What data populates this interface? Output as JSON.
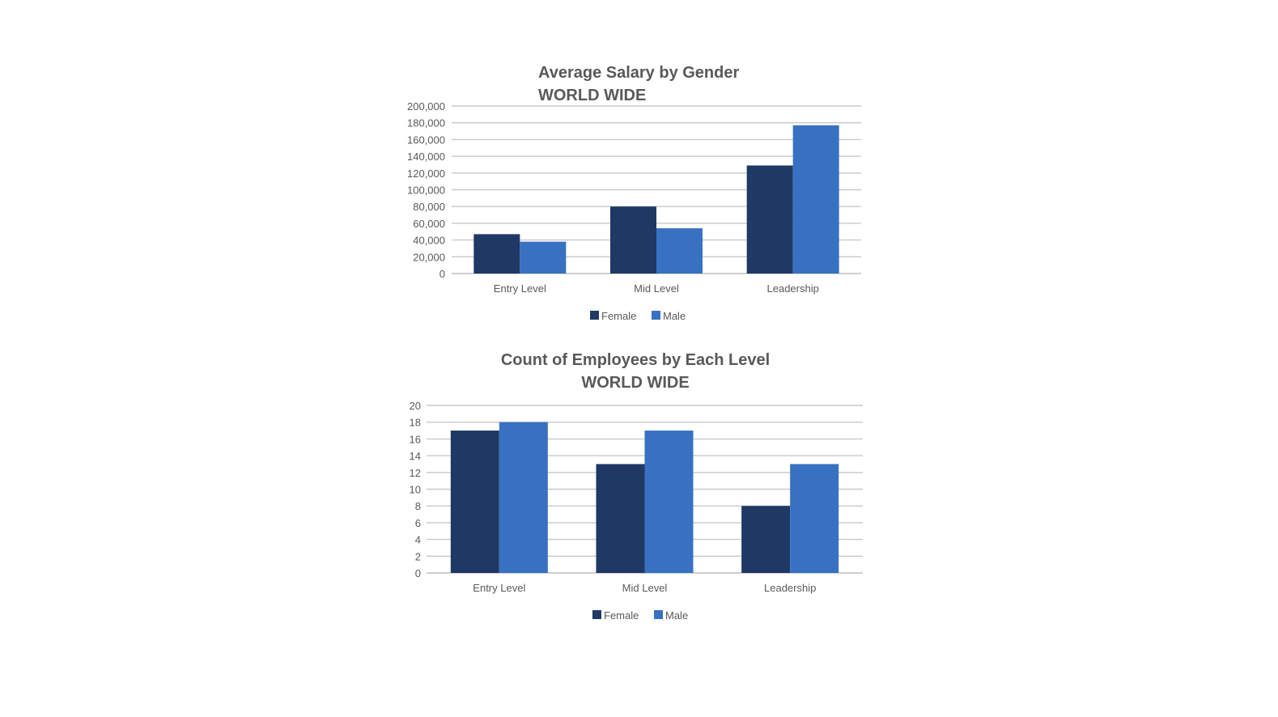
{
  "chart_data": [
    {
      "type": "bar",
      "title": "Average Salary by Gender",
      "subtitle": "WORLD WIDE",
      "categories": [
        "Entry Level",
        "Mid Level",
        "Leadership"
      ],
      "series": [
        {
          "name": "Female",
          "values": [
            47000,
            80000,
            129000
          ],
          "color": "#203864"
        },
        {
          "name": "Male",
          "values": [
            38000,
            54000,
            177000
          ],
          "color": "#3871c1"
        }
      ],
      "ylim": [
        0,
        200000
      ],
      "yticks": [
        "0",
        "20,000",
        "40,000",
        "60,000",
        "80,000",
        "100,000",
        "120,000",
        "140,000",
        "160,000",
        "180,000",
        "200,000"
      ],
      "xlabel": "",
      "ylabel": "",
      "grid": true,
      "legend": "bottom"
    },
    {
      "type": "bar",
      "title": "Count of Employees by Each Level",
      "subtitle": "WORLD WIDE",
      "categories": [
        "Entry Level",
        "Mid Level",
        "Leadership"
      ],
      "series": [
        {
          "name": "Female",
          "values": [
            17,
            13,
            8
          ],
          "color": "#203864"
        },
        {
          "name": "Male",
          "values": [
            18,
            17,
            13
          ],
          "color": "#3871c1"
        }
      ],
      "ylim": [
        0,
        20
      ],
      "yticks": [
        "0",
        "2",
        "4",
        "6",
        "8",
        "10",
        "12",
        "14",
        "16",
        "18",
        "20"
      ],
      "xlabel": "",
      "ylabel": "",
      "grid": true,
      "legend": "bottom"
    }
  ]
}
